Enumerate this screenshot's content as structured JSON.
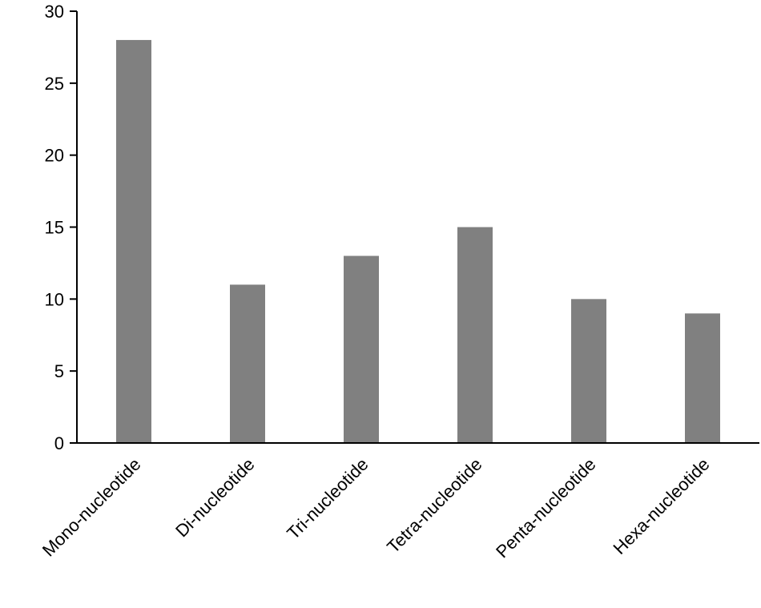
{
  "chart_data": {
    "type": "bar",
    "categories": [
      "Mono-nucleotide",
      "Di-nucleotide",
      "Tri-nucleotide",
      "Tetra-nucleotide",
      "Penta-nucleotide",
      "Hexa-nucleotide"
    ],
    "values": [
      28,
      11,
      13,
      15,
      10,
      9
    ],
    "title": "",
    "xlabel": "",
    "ylabel": "",
    "ylim": [
      0,
      30
    ],
    "yticks": [
      0,
      5,
      10,
      15,
      20,
      25,
      30
    ],
    "grid": false,
    "legend": "none",
    "bar_color": "#808080",
    "axis_color": "#000000"
  }
}
